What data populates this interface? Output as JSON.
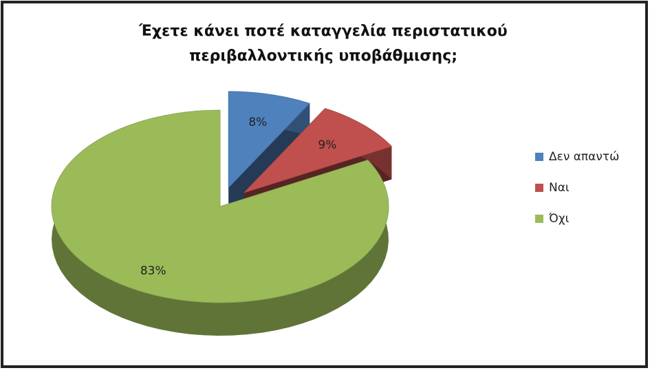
{
  "chart_data": {
    "type": "pie",
    "title": "Έχετε κάνει ποτέ καταγγελία περιστατικού περιβαλλοντικής υποβάθμισης;",
    "categories": [
      "Δεν απαντώ",
      "Ναι",
      "Όχι"
    ],
    "values": [
      8,
      9,
      83
    ],
    "value_labels": [
      "8%",
      "9%",
      "83%"
    ],
    "colors": [
      "#4f81bd",
      "#c0504d",
      "#9bbb59"
    ],
    "legend": "right"
  }
}
